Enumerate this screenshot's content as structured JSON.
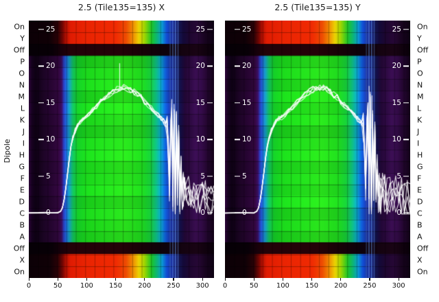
{
  "figure": {
    "ylabel": "Dipole",
    "background": "#ffffff",
    "curve_color": "#ffffff"
  },
  "chart_data": [
    {
      "type": "heatmap",
      "title": "2.5 (Tile135=135) X",
      "x_ticks": [
        0,
        50,
        100,
        150,
        200,
        250,
        300
      ],
      "x_range": [
        0,
        320
      ],
      "rows": [
        "On",
        "Y",
        "Off",
        "P",
        "O",
        "N",
        "M",
        "L",
        "K",
        "J",
        "I",
        "H",
        "G",
        "F",
        "E",
        "D",
        "C",
        "B",
        "A",
        "Off",
        "X",
        "On"
      ],
      "row_types": [
        "on",
        "on",
        "off",
        "dip",
        "dip",
        "dip",
        "dip",
        "dip",
        "dip",
        "dip",
        "dip",
        "dip",
        "dip",
        "dip",
        "dip",
        "dip",
        "dip",
        "dip",
        "dip",
        "off",
        "on",
        "on"
      ],
      "row_gain": [
        1.0,
        1.0,
        1.0,
        0.9,
        1.0,
        1.04,
        0.95,
        1.06,
        0.99,
        0.92,
        1.03,
        1.06,
        0.97,
        1.0,
        1.05,
        0.94,
        1.02,
        0.98,
        0.93,
        1.0,
        1.0,
        1.0
      ],
      "overlay_axis": {
        "ticks": [
          25,
          20,
          15,
          10,
          5,
          0
        ],
        "range": [
          0,
          25
        ]
      },
      "vlines": [
        [
          243.5,
          0.35
        ],
        [
          248,
          0.5
        ],
        [
          252.5,
          0.6
        ],
        [
          257,
          0.4
        ]
      ],
      "line": {
        "n_lines": 6,
        "seed": 7,
        "jitter": 0.35,
        "noise_start": 238,
        "noise_jitter": 2.5,
        "spikes": [
          [
            157,
            20.4
          ]
        ],
        "points": [
          [
            0,
            0
          ],
          [
            30,
            0
          ],
          [
            50,
            0
          ],
          [
            55,
            0.2
          ],
          [
            58,
            0.7
          ],
          [
            61,
            1.8
          ],
          [
            64,
            3.4
          ],
          [
            67,
            5.4
          ],
          [
            70,
            7.4
          ],
          [
            73,
            9.0
          ],
          [
            76,
            10.2
          ],
          [
            80,
            11.2
          ],
          [
            84,
            11.9
          ],
          [
            88,
            12.4
          ],
          [
            93,
            12.8
          ],
          [
            98,
            13.0
          ],
          [
            104,
            13.4
          ],
          [
            110,
            13.9
          ],
          [
            117,
            14.5
          ],
          [
            124,
            15.1
          ],
          [
            131,
            15.6
          ],
          [
            138,
            16.1
          ],
          [
            145,
            16.5
          ],
          [
            152,
            16.8
          ],
          [
            158,
            17.0
          ],
          [
            164,
            17.1
          ],
          [
            170,
            17.0
          ],
          [
            176,
            16.8
          ],
          [
            182,
            16.5
          ],
          [
            188,
            16.1
          ],
          [
            194,
            15.7
          ],
          [
            200,
            15.2
          ],
          [
            206,
            14.7
          ],
          [
            212,
            14.2
          ],
          [
            218,
            13.7
          ],
          [
            224,
            13.2
          ],
          [
            229,
            12.8
          ],
          [
            233,
            12.5
          ],
          [
            236,
            12.1
          ],
          [
            239,
            11.0
          ],
          [
            241,
            8.0
          ],
          [
            243,
            4.0
          ],
          [
            245,
            10.5
          ],
          [
            247,
            13.0
          ],
          [
            249,
            2.5
          ],
          [
            251,
            13.8
          ],
          [
            253,
            1.2
          ],
          [
            255,
            11.5
          ],
          [
            257,
            3.5
          ],
          [
            259,
            9.5
          ],
          [
            261,
            1.8
          ],
          [
            263,
            6.5
          ],
          [
            265,
            2.4
          ],
          [
            267,
            3.1
          ],
          [
            269,
            2.7
          ],
          [
            272,
            2.9
          ],
          [
            276,
            2.7
          ],
          [
            280,
            2.5
          ],
          [
            285,
            2.6
          ],
          [
            290,
            2.3
          ],
          [
            295,
            2.2
          ],
          [
            300,
            2.1
          ],
          [
            305,
            2.0
          ],
          [
            310,
            1.9
          ],
          [
            315,
            1.8
          ],
          [
            320,
            1.6
          ]
        ]
      }
    },
    {
      "type": "heatmap",
      "title": "2.5 (Tile135=135) Y",
      "x_ticks": [
        0,
        50,
        100,
        150,
        200,
        250,
        300
      ],
      "x_range": [
        0,
        320
      ],
      "rows": [
        "On",
        "Y",
        "Off",
        "P",
        "O",
        "N",
        "M",
        "L",
        "K",
        "J",
        "I",
        "H",
        "G",
        "F",
        "E",
        "D",
        "C",
        "B",
        "A",
        "Off",
        "X",
        "On"
      ],
      "row_types": [
        "on",
        "on",
        "off",
        "dip",
        "dip",
        "dip",
        "dip",
        "dip",
        "dip",
        "dip",
        "dip",
        "dip",
        "dip",
        "dip",
        "dip",
        "dip",
        "dip",
        "dip",
        "dip",
        "off",
        "on",
        "on"
      ],
      "row_gain": [
        1.0,
        1.0,
        1.0,
        0.93,
        1.02,
        0.96,
        1.05,
        0.98,
        1.04,
        0.91,
        1.0,
        1.05,
        0.95,
        1.02,
        0.97,
        1.06,
        0.94,
        1.01,
        0.92,
        1.0,
        1.0,
        1.0
      ],
      "overlay_axis": {
        "ticks": [
          25,
          20,
          15,
          10,
          5,
          0
        ],
        "range": [
          0,
          25
        ]
      },
      "vlines": [
        [
          243.5,
          0.3
        ],
        [
          248,
          0.55
        ],
        [
          252.5,
          0.55
        ],
        [
          257,
          0.35
        ]
      ],
      "line": {
        "n_lines": 6,
        "seed": 19,
        "jitter": 0.35,
        "noise_start": 238,
        "noise_jitter": 3.0,
        "spikes": [
          [
            249,
            17.3
          ],
          [
            254,
            16.0
          ]
        ],
        "points": [
          [
            0,
            0
          ],
          [
            30,
            0
          ],
          [
            50,
            0
          ],
          [
            55,
            0.2
          ],
          [
            58,
            0.7
          ],
          [
            61,
            1.8
          ],
          [
            64,
            3.4
          ],
          [
            67,
            5.4
          ],
          [
            70,
            7.4
          ],
          [
            73,
            9.0
          ],
          [
            76,
            10.2
          ],
          [
            80,
            11.2
          ],
          [
            84,
            11.9
          ],
          [
            88,
            12.4
          ],
          [
            93,
            12.8
          ],
          [
            98,
            13.0
          ],
          [
            104,
            13.4
          ],
          [
            110,
            13.9
          ],
          [
            117,
            14.5
          ],
          [
            124,
            15.1
          ],
          [
            131,
            15.6
          ],
          [
            138,
            16.1
          ],
          [
            145,
            16.5
          ],
          [
            152,
            16.8
          ],
          [
            158,
            17.0
          ],
          [
            164,
            17.1
          ],
          [
            170,
            17.0
          ],
          [
            176,
            16.8
          ],
          [
            182,
            16.5
          ],
          [
            188,
            16.1
          ],
          [
            194,
            15.7
          ],
          [
            200,
            15.2
          ],
          [
            206,
            14.7
          ],
          [
            212,
            14.2
          ],
          [
            218,
            13.7
          ],
          [
            224,
            13.2
          ],
          [
            229,
            12.8
          ],
          [
            233,
            12.5
          ],
          [
            236,
            12.1
          ],
          [
            239,
            11.0
          ],
          [
            241,
            8.0
          ],
          [
            243,
            4.0
          ],
          [
            245,
            10.5
          ],
          [
            247,
            13.0
          ],
          [
            249,
            2.5
          ],
          [
            251,
            13.8
          ],
          [
            253,
            1.2
          ],
          [
            255,
            11.5
          ],
          [
            257,
            3.5
          ],
          [
            259,
            9.5
          ],
          [
            261,
            1.8
          ],
          [
            263,
            6.5
          ],
          [
            265,
            2.4
          ],
          [
            267,
            3.1
          ],
          [
            269,
            2.7
          ],
          [
            272,
            2.9
          ],
          [
            276,
            2.7
          ],
          [
            280,
            2.5
          ],
          [
            285,
            2.6
          ],
          [
            290,
            2.3
          ],
          [
            295,
            2.2
          ],
          [
            300,
            2.1
          ],
          [
            305,
            2.0
          ],
          [
            310,
            1.9
          ],
          [
            315,
            1.8
          ],
          [
            320,
            1.6
          ]
        ]
      }
    }
  ],
  "colormaps": {
    "dip": [
      [
        0,
        "#30073d"
      ],
      [
        5,
        "#170120"
      ],
      [
        12,
        "#0e0114"
      ],
      [
        26,
        "#1d0426"
      ],
      [
        40,
        "#270532"
      ],
      [
        52,
        "#33073f"
      ],
      [
        57,
        "#3a0f62"
      ],
      [
        60,
        "#2b3ab8"
      ],
      [
        64,
        "#1f64e0"
      ],
      [
        70,
        "#16a0c0"
      ],
      [
        76,
        "#12c060"
      ],
      [
        84,
        "#14cc28"
      ],
      [
        100,
        "#1bd81b"
      ],
      [
        130,
        "#22e01c"
      ],
      [
        165,
        "#2ae41c"
      ],
      [
        195,
        "#1fd81d"
      ],
      [
        210,
        "#16cc3a"
      ],
      [
        220,
        "#0fc284"
      ],
      [
        228,
        "#0ba8cc"
      ],
      [
        236,
        "#1060dd"
      ],
      [
        244,
        "#1b35b0"
      ],
      [
        252,
        "#1c2a85"
      ],
      [
        258,
        "#181f66"
      ],
      [
        263,
        "#150d46"
      ],
      [
        270,
        "#230736"
      ],
      [
        280,
        "#2f0a44"
      ],
      [
        288,
        "#3a0e52"
      ],
      [
        298,
        "#330b48"
      ],
      [
        306,
        "#270735"
      ],
      [
        314,
        "#1a0423"
      ],
      [
        320,
        "#130218"
      ]
    ],
    "on": [
      [
        0,
        "#0c0006"
      ],
      [
        36,
        "#100107"
      ],
      [
        50,
        "#2a0206"
      ],
      [
        58,
        "#6e0603"
      ],
      [
        64,
        "#b01002"
      ],
      [
        72,
        "#e01c02"
      ],
      [
        100,
        "#ea2402"
      ],
      [
        150,
        "#f02a02"
      ],
      [
        168,
        "#ee4c02"
      ],
      [
        180,
        "#f08c02"
      ],
      [
        190,
        "#ecd202"
      ],
      [
        200,
        "#9ed602"
      ],
      [
        212,
        "#1cc626"
      ],
      [
        222,
        "#0cb47e"
      ],
      [
        230,
        "#0a9cd2"
      ],
      [
        238,
        "#124ed6"
      ],
      [
        248,
        "#1b2d9a"
      ],
      [
        258,
        "#171b60"
      ],
      [
        266,
        "#130a3a"
      ],
      [
        278,
        "#1e0630"
      ],
      [
        292,
        "#270836"
      ],
      [
        304,
        "#190420"
      ],
      [
        320,
        "#0d0212"
      ]
    ],
    "off": [
      [
        0,
        "#060006"
      ],
      [
        40,
        "#080007"
      ],
      [
        55,
        "#16010a"
      ],
      [
        70,
        "#230208"
      ],
      [
        160,
        "#250208"
      ],
      [
        200,
        "#170207"
      ],
      [
        235,
        "#0d020c"
      ],
      [
        265,
        "#140310"
      ],
      [
        290,
        "#190414"
      ],
      [
        320,
        "#090009"
      ]
    ]
  }
}
